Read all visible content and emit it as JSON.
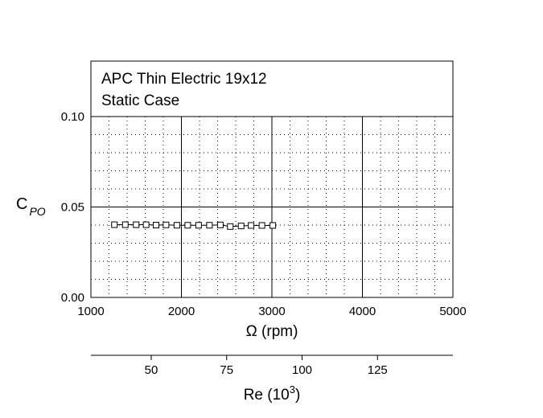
{
  "chart_data": {
    "type": "scatter",
    "legend_lines": [
      "APC Thin Electric 19x12",
      "Static Case"
    ],
    "legend_placement": "top",
    "ylabel": {
      "main": "C",
      "sub": "PO"
    },
    "xlabel": "Ω (rpm)",
    "xlim": [
      1000,
      5000
    ],
    "ylim": [
      0.0,
      0.12
    ],
    "xticks": [
      1000,
      2000,
      3000,
      4000,
      5000
    ],
    "xtick_labels": [
      "1000",
      "2000",
      "3000",
      "4000",
      "5000"
    ],
    "yticks": [
      0.0,
      0.05,
      0.1
    ],
    "ytick_labels": [
      "0.00",
      "0.05",
      "0.10"
    ],
    "grid": "major solid, minor dotted",
    "marker": "open-square",
    "series": [
      {
        "x": [
          1260,
          1380,
          1500,
          1610,
          1720,
          1830,
          1950,
          2070,
          2190,
          2310,
          2430,
          2540,
          2660,
          2770,
          2890,
          3010
        ],
        "y": [
          0.0402,
          0.0402,
          0.0402,
          0.0402,
          0.04,
          0.0401,
          0.0399,
          0.0399,
          0.0399,
          0.0399,
          0.0401,
          0.0392,
          0.0395,
          0.0398,
          0.0398,
          0.0398
        ]
      }
    ],
    "secondary_axis": {
      "label": "Re (10",
      "label_sup": "3",
      "label_close": ")",
      "ticks": [
        50,
        75,
        100,
        125
      ],
      "tick_labels": [
        "50",
        "75",
        "100",
        "125"
      ],
      "range": [
        30,
        150
      ]
    }
  }
}
